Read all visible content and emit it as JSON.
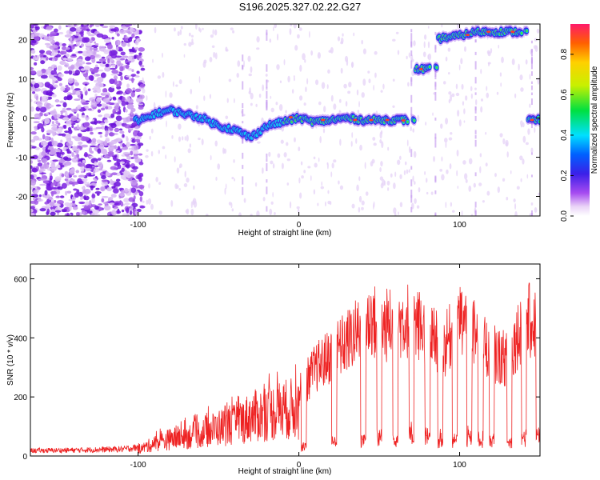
{
  "title": "S196.2025.327.02.22.G27",
  "chart_data": [
    {
      "type": "heatmap",
      "xlabel": "Height of straight line (km)",
      "ylabel": "Frequency (Hz)",
      "xlim": [
        -167,
        150
      ],
      "ylim": [
        -25,
        24
      ],
      "xticks": [
        -100,
        0,
        100
      ],
      "yticks": [
        -20,
        -10,
        0,
        10,
        20
      ],
      "xtick_labels": [
        "-100",
        "0",
        "100"
      ],
      "ytick_labels": [
        "-20",
        "-10",
        "0",
        "10",
        "20"
      ],
      "colorbar": {
        "label": "Normalized spectral amplitude",
        "range": [
          0.0,
          0.95
        ],
        "ticks": [
          0.0,
          0.2,
          0.4,
          0.6,
          0.8
        ],
        "tick_labels": [
          "0.0",
          "0.2",
          "0.4",
          "0.6",
          "0.8"
        ]
      },
      "ridge": {
        "name": "dominant frequency",
        "x": [
          -100,
          -90,
          -80,
          -70,
          -60,
          -50,
          -40,
          -30,
          -20,
          -10,
          0,
          10,
          20,
          30,
          40,
          50,
          60,
          68,
          72,
          80,
          86,
          90,
          100,
          110,
          120,
          130,
          138,
          142,
          148
        ],
        "y": [
          -1,
          1,
          2,
          1,
          0,
          -2,
          -3,
          -5,
          -2,
          -1,
          0,
          -1,
          -0.5,
          0,
          -0.5,
          -0.5,
          -0.5,
          -0.5,
          12.5,
          12.5,
          20,
          20.5,
          21,
          22,
          22,
          22,
          22,
          -0.5,
          -0.5
        ]
      }
    },
    {
      "type": "line",
      "xlabel": "Height of straight line (km)",
      "ylabel": "SNR (10 * v/v)",
      "xlim": [
        -167,
        150
      ],
      "ylim": [
        0,
        650
      ],
      "xticks": [
        -100,
        0,
        100
      ],
      "yticks": [
        0,
        200,
        400,
        600
      ],
      "xtick_labels": [
        "-100",
        "0",
        "100"
      ],
      "ytick_labels": [
        "0",
        "200",
        "400",
        "600"
      ],
      "color": "#ee2222",
      "series": [
        {
          "name": "SNR envelope",
          "x": [
            -167,
            -140,
            -110,
            -100,
            -90,
            -80,
            -70,
            -60,
            -50,
            -40,
            -30,
            -20,
            -10,
            0,
            5,
            10,
            20,
            30,
            40,
            45,
            50,
            60,
            70,
            80,
            90,
            100,
            110,
            120,
            130,
            140,
            150
          ],
          "y": [
            22,
            24,
            28,
            35,
            70,
            95,
            110,
            130,
            160,
            175,
            220,
            240,
            260,
            270,
            330,
            380,
            440,
            500,
            560,
            600,
            560,
            580,
            600,
            540,
            470,
            600,
            530,
            450,
            420,
            600,
            560
          ]
        }
      ]
    }
  ]
}
